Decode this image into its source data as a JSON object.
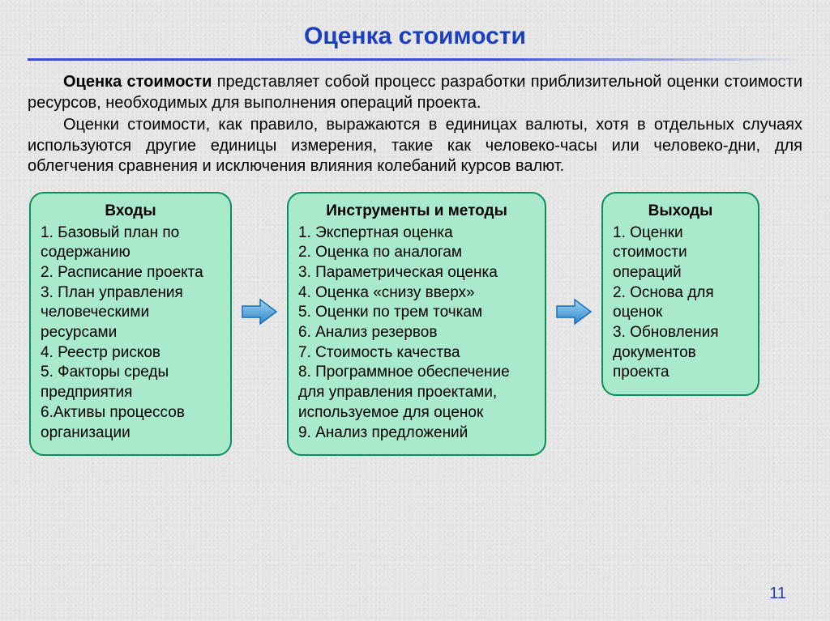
{
  "colors": {
    "title": "#1c3fbf",
    "rule": "#3b4fd1",
    "box_bg": "#a9e9cc",
    "box_border": "#0a8f5a",
    "arrow_fill": "#4aa3e0",
    "arrow_stroke": "#1a6fb3",
    "page_num": "#1c3fbf"
  },
  "title": "Оценка стоимости",
  "para1_bold": "Оценка стоимости",
  "para1_rest": " представляет собой процесс разработки приблизительной оценки стоимости ресурсов, необходимых для выполнения операций проекта.",
  "para2": "Оценки стоимости, как правило, выражаются в единицах валюты, хотя в отдельных случаях используются другие единицы измерения, такие как человеко-часы или человеко-дни, для облегчения сравнения и исключения влияния колебаний курсов валют.",
  "boxes": {
    "inputs": {
      "title": "Входы",
      "items": [
        "1. Базовый план по содержанию",
        "2. Расписание проекта",
        "3. План управления человеческими ресурсами",
        "4. Реестр рисков",
        "5. Факторы среды предприятия",
        "6.Активы процессов организации"
      ]
    },
    "tools": {
      "title": "Инструменты и методы",
      "items": [
        "1. Экспертная оценка",
        "2. Оценка по аналогам",
        "3. Параметрическая оценка",
        "4. Оценка «снизу вверх»",
        "5. Оценки по трем точкам",
        "6. Анализ резервов",
        "7. Стоимость качества",
        "8. Программное обеспечение",
        "для управления проектами, используемое для оценок",
        "9. Анализ предложений"
      ]
    },
    "outputs": {
      "title": "Выходы",
      "items": [
        "1. Оценки стоимости операций",
        "2. Основа для оценок",
        "3. Обновления документов проекта"
      ]
    }
  },
  "page_number": "11"
}
